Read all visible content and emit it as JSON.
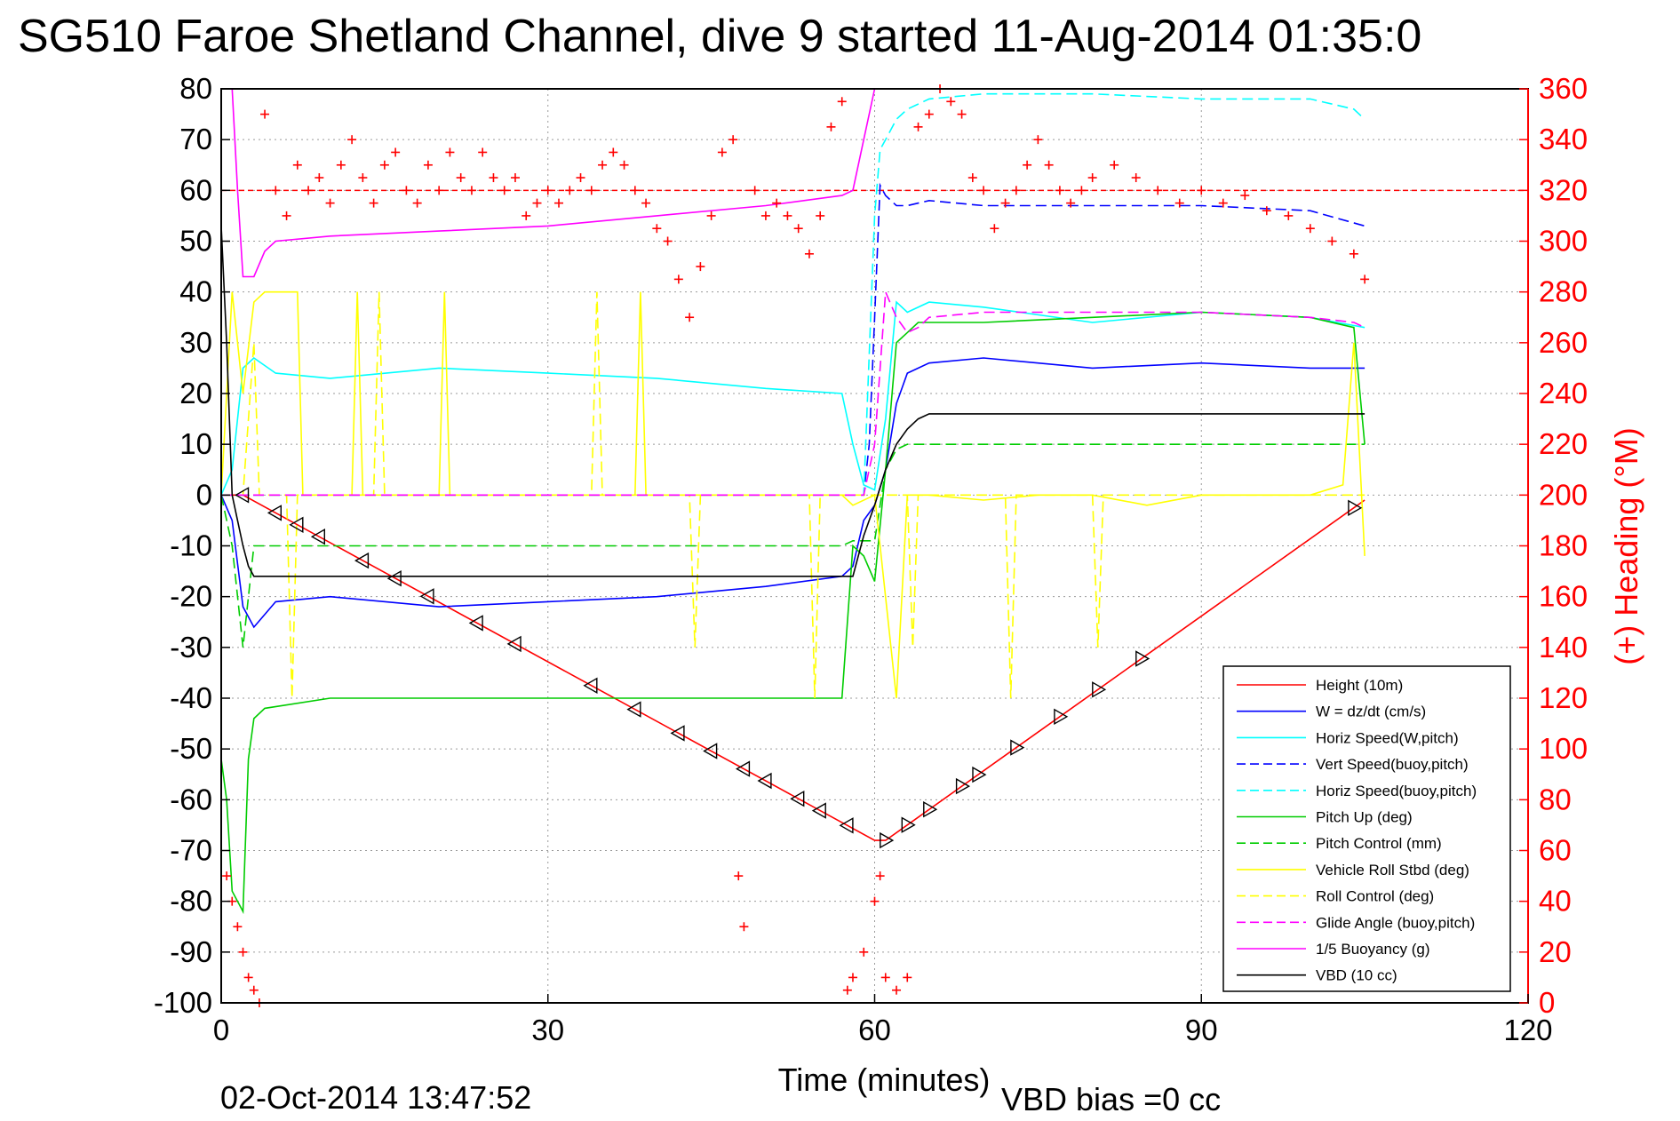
{
  "chart_data": {
    "type": "line",
    "title": "SG510 Faroe Shetland Channel, dive 9 started 11-Aug-2014 01:35:0",
    "xlabel": "Time (minutes)",
    "ylabel_right": "(+) Heading (°M)",
    "xlim": [
      0,
      120
    ],
    "ylim": [
      -100,
      80
    ],
    "ylim_right": [
      0,
      360
    ],
    "x_ticks": [
      "0",
      "30",
      "60",
      "90",
      "120"
    ],
    "y_ticks": [
      "80",
      "70",
      "60",
      "50",
      "40",
      "30",
      "20",
      "10",
      "0",
      "-10",
      "-20",
      "-30",
      "-40",
      "-50",
      "-60",
      "-70",
      "-80",
      "-90",
      "-100"
    ],
    "y_ticks_right": [
      "360",
      "340",
      "320",
      "300",
      "280",
      "260",
      "240",
      "220",
      "200",
      "180",
      "160",
      "140",
      "120",
      "100",
      "80",
      "60",
      "40",
      "20",
      "0"
    ],
    "grid": true,
    "legend_position": "bottom-right",
    "heading_reference": 320,
    "series": [
      {
        "name": "Height (10m)",
        "color": "#ff0000",
        "style": "solid",
        "x": [
          0,
          2,
          60,
          61,
          105
        ],
        "y": [
          0,
          0,
          -68,
          -68,
          -1
        ]
      },
      {
        "name": "W = dz/dt (cm/s)",
        "color": "#0000ff",
        "style": "solid",
        "x": [
          0,
          1,
          2,
          3,
          5,
          10,
          20,
          30,
          40,
          50,
          57,
          58,
          59,
          60,
          61,
          62,
          63,
          65,
          70,
          80,
          90,
          100,
          105
        ],
        "y": [
          0,
          -5,
          -22,
          -26,
          -21,
          -20,
          -22,
          -21,
          -20,
          -18,
          -16,
          -14,
          -5,
          -2,
          5,
          18,
          24,
          26,
          27,
          25,
          26,
          25,
          25
        ]
      },
      {
        "name": "Horiz Speed(W,pitch)",
        "color": "#00ffff",
        "style": "solid",
        "x": [
          0,
          1,
          2,
          3,
          5,
          10,
          20,
          30,
          40,
          50,
          57,
          58,
          59,
          60,
          61,
          62,
          63,
          65,
          70,
          80,
          90,
          100,
          105
        ],
        "y": [
          0,
          5,
          25,
          27,
          24,
          23,
          25,
          24,
          23,
          21,
          20,
          10,
          2,
          1,
          15,
          38,
          36,
          38,
          37,
          34,
          36,
          35,
          33
        ]
      },
      {
        "name": "Vert Speed(buoy,pitch)",
        "color": "#0000ff",
        "style": "dashed",
        "x": [
          0,
          59,
          59.5,
          60,
          60.5,
          61,
          62,
          63,
          65,
          70,
          80,
          90,
          100,
          105
        ],
        "y": [
          0,
          0,
          10,
          35,
          61,
          59,
          57,
          57,
          58,
          57,
          57,
          57,
          56,
          53
        ]
      },
      {
        "name": "Horiz Speed(buoy,pitch)",
        "color": "#00ffff",
        "style": "dashed",
        "x": [
          0,
          59,
          60,
          60.5,
          61,
          62,
          63,
          65,
          70,
          80,
          90,
          100,
          104,
          105
        ],
        "y": [
          0,
          0,
          55,
          68,
          70,
          74,
          76,
          78,
          79,
          79,
          78,
          78,
          76,
          74
        ]
      },
      {
        "name": "Pitch Up (deg)",
        "color": "#00cc00",
        "style": "solid",
        "x": [
          0,
          0.5,
          1,
          1.5,
          2,
          2.5,
          3,
          4,
          10,
          20,
          30,
          40,
          50,
          57,
          58,
          59,
          60,
          61,
          62,
          63,
          64,
          70,
          80,
          90,
          100,
          104,
          105
        ],
        "y": [
          -52,
          -60,
          -78,
          -80,
          -82,
          -52,
          -44,
          -42,
          -40,
          -40,
          -40,
          -40,
          -40,
          -40,
          -10,
          -12,
          -17,
          5,
          30,
          32,
          34,
          34,
          35,
          36,
          35,
          33,
          10
        ]
      },
      {
        "name": "Pitch Control (mm)",
        "color": "#00cc00",
        "style": "dashed",
        "x": [
          0,
          1,
          2,
          3,
          30,
          57,
          58,
          60,
          61,
          62,
          63,
          65,
          100,
          105
        ],
        "y": [
          0,
          -10,
          -30,
          -10,
          -10,
          -10,
          -9,
          -9,
          5,
          9,
          10,
          10,
          10,
          10
        ]
      },
      {
        "name": "Vehicle Roll Stbd (deg)",
        "color": "#ffff00",
        "style": "solid",
        "x": [
          0,
          1,
          2,
          3,
          4,
          5,
          7,
          7.5,
          8,
          12,
          12.5,
          13,
          20,
          20.5,
          21,
          30,
          38,
          38.5,
          39,
          50,
          55,
          57,
          58,
          60,
          62,
          63,
          65,
          70,
          75,
          80,
          85,
          90,
          100,
          103,
          104,
          105
        ],
        "y": [
          0,
          40,
          20,
          38,
          40,
          40,
          40,
          0,
          0,
          0,
          40,
          0,
          0,
          40,
          0,
          0,
          0,
          40,
          0,
          0,
          0,
          0,
          -2,
          0,
          -40,
          0,
          0,
          -1,
          0,
          0,
          -2,
          0,
          0,
          2,
          30,
          -12
        ]
      },
      {
        "name": "Roll Control (deg)",
        "color": "#ffff00",
        "style": "dashed",
        "x": [
          0,
          2,
          3,
          3.5,
          6,
          6.5,
          7,
          14,
          14.5,
          15,
          30,
          34,
          34.5,
          35,
          43,
          43.5,
          44,
          54,
          54.5,
          55,
          63,
          63.5,
          64,
          72,
          72.5,
          73,
          80,
          80.5,
          81,
          105
        ],
        "y": [
          0,
          0,
          30,
          0,
          0,
          -40,
          0,
          0,
          40,
          0,
          0,
          0,
          40,
          0,
          0,
          -30,
          0,
          0,
          -40,
          0,
          0,
          -30,
          0,
          0,
          -40,
          0,
          0,
          -30,
          0,
          0
        ]
      },
      {
        "name": "Glide Angle (buoy,pitch)",
        "color": "#ff00ff",
        "style": "dashed",
        "x": [
          0,
          59,
          60,
          61,
          62,
          63,
          64,
          65,
          70,
          80,
          90,
          100,
          104,
          105
        ],
        "y": [
          0,
          0,
          10,
          40,
          35,
          32,
          33,
          35,
          36,
          36,
          36,
          35,
          34,
          33
        ]
      },
      {
        "name": "1/5 Buoyancy (g)",
        "color": "#ff00ff",
        "style": "solid",
        "x": [
          1,
          1.5,
          2,
          3,
          4,
          5,
          10,
          20,
          30,
          40,
          50,
          57,
          58,
          59,
          60
        ],
        "y": [
          80,
          60,
          43,
          43,
          48,
          50,
          51,
          52,
          53,
          55,
          57,
          59,
          60,
          70,
          80
        ]
      },
      {
        "name": "VBD (10 cc)",
        "color": "#000000",
        "style": "solid",
        "x": [
          0,
          0.5,
          1,
          1.5,
          2,
          2.5,
          3,
          30,
          57,
          58,
          59,
          60,
          61,
          62,
          63,
          64,
          65,
          100,
          105
        ],
        "y": [
          53,
          30,
          0,
          -5,
          -10,
          -14,
          -16,
          -16,
          -16,
          -16,
          -8,
          -2,
          5,
          10,
          13,
          15,
          16,
          16,
          16
        ]
      }
    ],
    "heading_series": {
      "name": "(+) Heading",
      "color": "#ff0000",
      "x": [
        0.5,
        1,
        1.5,
        2,
        2.5,
        3,
        3.5,
        4,
        5,
        6,
        7,
        8,
        9,
        10,
        11,
        12,
        13,
        14,
        15,
        16,
        17,
        18,
        19,
        20,
        21,
        22,
        23,
        24,
        25,
        26,
        27,
        28,
        29,
        30,
        31,
        32,
        33,
        34,
        35,
        36,
        37,
        38,
        39,
        40,
        41,
        42,
        43,
        44,
        45,
        46,
        47,
        47.5,
        48,
        49,
        50,
        51,
        52,
        53,
        54,
        55,
        56,
        57,
        57.5,
        58,
        59,
        60,
        60.5,
        61,
        62,
        63,
        64,
        65,
        66,
        67,
        68,
        69,
        70,
        71,
        72,
        73,
        74,
        75,
        76,
        77,
        78,
        79,
        80,
        82,
        84,
        86,
        88,
        90,
        92,
        94,
        96,
        98,
        100,
        102,
        104,
        105
      ],
      "y": [
        50,
        40,
        30,
        20,
        10,
        5,
        0,
        350,
        320,
        310,
        330,
        320,
        325,
        315,
        330,
        340,
        325,
        315,
        330,
        335,
        320,
        315,
        330,
        320,
        335,
        325,
        320,
        335,
        325,
        320,
        325,
        310,
        315,
        320,
        315,
        320,
        325,
        320,
        330,
        335,
        330,
        320,
        315,
        305,
        300,
        285,
        270,
        290,
        310,
        335,
        340,
        50,
        30,
        320,
        310,
        315,
        310,
        305,
        295,
        310,
        345,
        355,
        5,
        10,
        20,
        40,
        50,
        10,
        5,
        10,
        345,
        350,
        360,
        355,
        350,
        325,
        320,
        305,
        315,
        320,
        330,
        340,
        330,
        320,
        315,
        320,
        325,
        330,
        325,
        320,
        315,
        320,
        315,
        318,
        312,
        310,
        305,
        300,
        295,
        285
      ]
    }
  },
  "footer": {
    "timestamp": "02-Oct-2014 13:47:52",
    "vbd_bias": "VBD bias =0 cc"
  }
}
